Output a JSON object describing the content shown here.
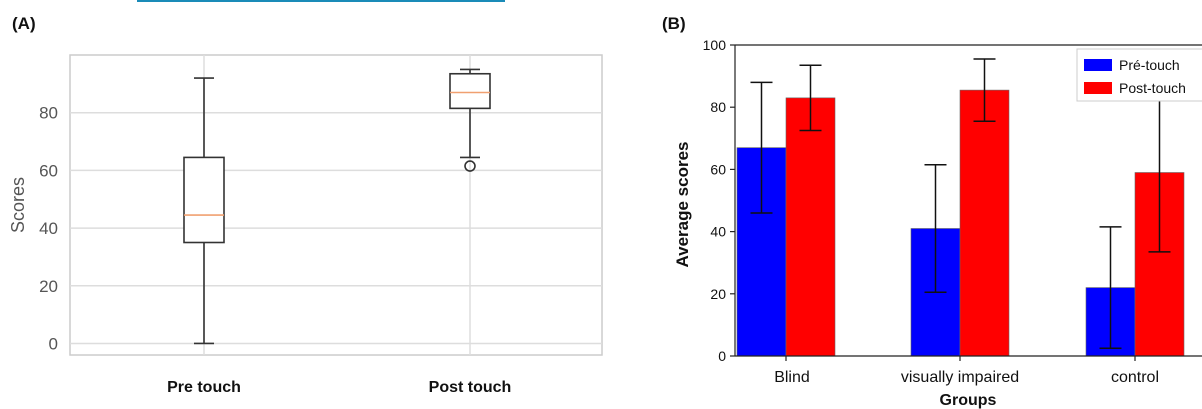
{
  "decoration": {
    "top_rule_color": "#1a8bb8"
  },
  "panels": {
    "a_label": "(A)",
    "b_label": "(B)"
  },
  "chart_data": [
    {
      "type": "box",
      "panel": "(A)",
      "title": "",
      "xlabel": "",
      "ylabel": "Scores",
      "ylim": [
        -4,
        100
      ],
      "yticks": [
        0,
        20,
        40,
        60,
        80
      ],
      "grid": true,
      "categories": [
        "Pre touch",
        "Post touch"
      ],
      "boxes": [
        {
          "name": "Pre touch",
          "whisker_low": 0,
          "q1": 35,
          "median": 44.5,
          "q3": 64.5,
          "whisker_high": 92,
          "outliers": []
        },
        {
          "name": "Post touch",
          "whisker_low": 64.5,
          "q1": 81.5,
          "median": 87,
          "q3": 93.5,
          "whisker_high": 95,
          "outliers": [
            61.5
          ]
        }
      ],
      "colors": {
        "box": "#333333",
        "median": "#f0a070",
        "grid": "#dddddd"
      }
    },
    {
      "type": "bar",
      "panel": "(B)",
      "title": "",
      "xlabel": "Groups",
      "ylabel": "Average scores",
      "ylim": [
        0,
        100
      ],
      "yticks": [
        0,
        20,
        40,
        60,
        80,
        100
      ],
      "grid": false,
      "categories": [
        "Blind",
        "visually impaired",
        "control"
      ],
      "series": [
        {
          "name": "Pré-touch",
          "color": "#0000ff",
          "values": [
            67,
            41,
            22
          ],
          "error": [
            21,
            20.5,
            19.5
          ]
        },
        {
          "name": "Post-touch",
          "color": "#ff0000",
          "values": [
            83,
            85.5,
            59
          ],
          "error": [
            10.5,
            10,
            25.5
          ]
        }
      ],
      "legend_position": "top-right"
    }
  ]
}
